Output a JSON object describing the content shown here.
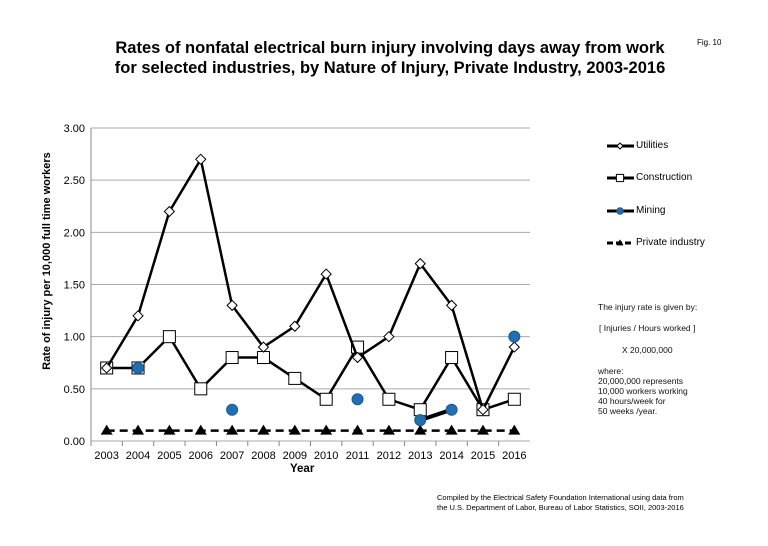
{
  "figure_label": "Fig. 10",
  "chart_data": {
    "type": "line",
    "title_line1": "Rates of nonfatal electrical burn injury involving days away from work",
    "title_line2": "for selected industries, by Nature of Injury, Private Industry,  2003-2016",
    "xlabel": "Year",
    "ylabel": "Rate of injury per 10,000 full time workers",
    "ylim": [
      0,
      3
    ],
    "yticks": [
      "0.00",
      "0.50",
      "1.00",
      "1.50",
      "2.00",
      "2.50",
      "3.00"
    ],
    "grid": true,
    "legend_placement": "right",
    "categories": [
      "2003",
      "2004",
      "2005",
      "2006",
      "2007",
      "2008",
      "2009",
      "2010",
      "2011",
      "2012",
      "2013",
      "2014",
      "2015",
      "2016"
    ],
    "series": [
      {
        "name": "Utilities",
        "marker": "diamond-open",
        "line": "solid",
        "color": "#000000",
        "values": [
          0.7,
          1.2,
          2.2,
          2.7,
          1.3,
          0.9,
          1.1,
          1.6,
          0.8,
          1.0,
          1.7,
          1.3,
          0.3,
          0.9
        ]
      },
      {
        "name": "Construction",
        "marker": "square-open",
        "line": "solid",
        "color": "#000000",
        "values": [
          0.7,
          0.7,
          1.0,
          0.5,
          0.8,
          0.8,
          0.6,
          0.4,
          0.9,
          0.4,
          0.3,
          0.8,
          0.3,
          0.4
        ]
      },
      {
        "name": "Mining",
        "marker": "circle-filled",
        "line": "solid",
        "color": "#1f6fb5",
        "values": [
          null,
          0.7,
          null,
          null,
          0.3,
          null,
          null,
          null,
          0.4,
          null,
          0.2,
          0.3,
          null,
          1.0
        ]
      },
      {
        "name": "Private industry",
        "marker": "triangle-filled",
        "line": "dashed",
        "color": "#000000",
        "values": [
          0.1,
          0.1,
          0.1,
          0.1,
          0.1,
          0.1,
          0.1,
          0.1,
          0.1,
          0.1,
          0.1,
          0.1,
          0.1,
          0.1
        ]
      }
    ]
  },
  "note": {
    "line1": "The injury rate is given by:",
    "line2": "[ Injuries / Hours worked ]",
    "line3": "X   20,000,000",
    "where": [
      "where:",
      "20,000,000  represents",
      "10,000 workers working",
      "40 hours/week for",
      "50 weeks /year."
    ]
  },
  "credit": [
    "Compiled by the Electrical Safety Foundation International using data from",
    "the U.S. Department of Labor, Bureau of Labor Statistics, SOII, 2003-2016"
  ]
}
